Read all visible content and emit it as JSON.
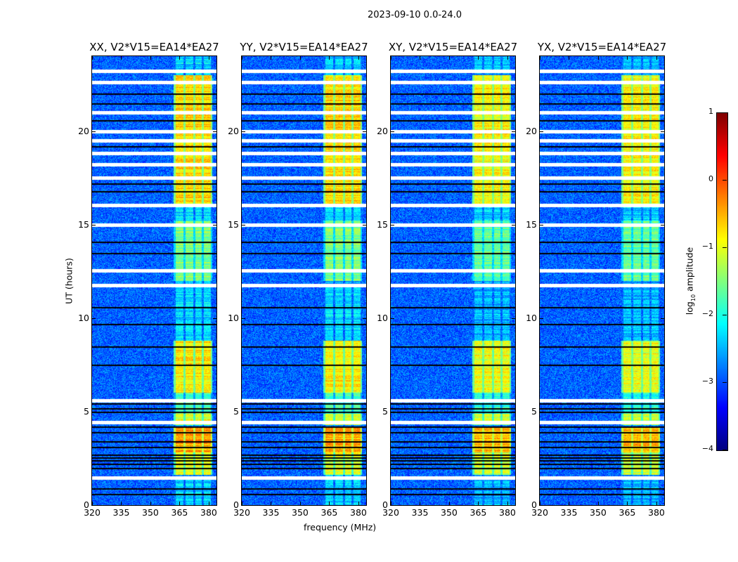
{
  "chart_data": {
    "type": "heatmap",
    "title": "2023-09-10 0.0-24.0",
    "xlabel": "frequency (MHz)",
    "ylabel": "UT (hours)",
    "xlim": [
      320,
      384
    ],
    "ylim": [
      0,
      24
    ],
    "xticks": [
      "320",
      "335",
      "350",
      "365",
      "380"
    ],
    "yticks": [
      "0",
      "5",
      "10",
      "15",
      "20"
    ],
    "panels": [
      {
        "title": "XX, V2*V15=EA14*EA27",
        "seed": 1
      },
      {
        "title": "YY, V2*V15=EA14*EA27",
        "seed": 2
      },
      {
        "title": "XY, V2*V15=EA14*EA27",
        "seed": 3
      },
      {
        "title": "YX, V2*V15=EA14*EA27",
        "seed": 4
      }
    ],
    "colorbar": {
      "label_main": "log",
      "label_sub": "10",
      "label_rest": " amplitude",
      "colormap": "jet",
      "range": [
        -4,
        1
      ],
      "ticks": [
        "1",
        "0",
        "−1",
        "−2",
        "−3",
        "−4"
      ]
    },
    "background_log_amplitude": -2.9,
    "bright_subbands_mhz": [
      [
        363,
        367
      ],
      [
        368,
        372
      ],
      [
        373,
        376.5
      ],
      [
        377.5,
        381
      ]
    ],
    "band_activity_hours": [
      {
        "from": 0,
        "to": 1.4,
        "level": -2.3
      },
      {
        "from": 1.6,
        "to": 2.8,
        "level": -1.0
      },
      {
        "from": 2.8,
        "to": 4.2,
        "level": -0.4
      },
      {
        "from": 4.3,
        "to": 4.9,
        "level": -1.0
      },
      {
        "from": 4.9,
        "to": 6.0,
        "level": -1.8
      },
      {
        "from": 6.0,
        "to": 8.8,
        "level": -0.8
      },
      {
        "from": 8.8,
        "to": 11.7,
        "level": -2.3
      },
      {
        "from": 12.0,
        "to": 15.2,
        "level": -1.5
      },
      {
        "from": 15.2,
        "to": 16.0,
        "level": -2.2
      },
      {
        "from": 16.0,
        "to": 23.0,
        "level": -0.7
      },
      {
        "from": 23.0,
        "to": 24.0,
        "level": -2.3
      }
    ],
    "flagged_rows_hours": [
      1.45,
      4.45,
      5.6,
      11.75,
      12.55,
      15.0,
      16.05,
      17.5,
      18.2,
      18.8,
      19.5,
      20.0,
      21.0,
      22.6,
      23.2
    ],
    "zero_rows_hours": [
      0.6,
      0.9,
      2.0,
      2.2,
      2.4,
      2.55,
      2.7,
      3.1,
      3.4,
      3.9,
      4.2,
      5.0,
      5.2,
      5.45,
      7.5,
      8.5,
      9.7,
      10.6,
      13.5,
      14.1,
      16.8,
      17.2,
      19.2,
      20.6,
      21.5,
      22.0
    ]
  }
}
